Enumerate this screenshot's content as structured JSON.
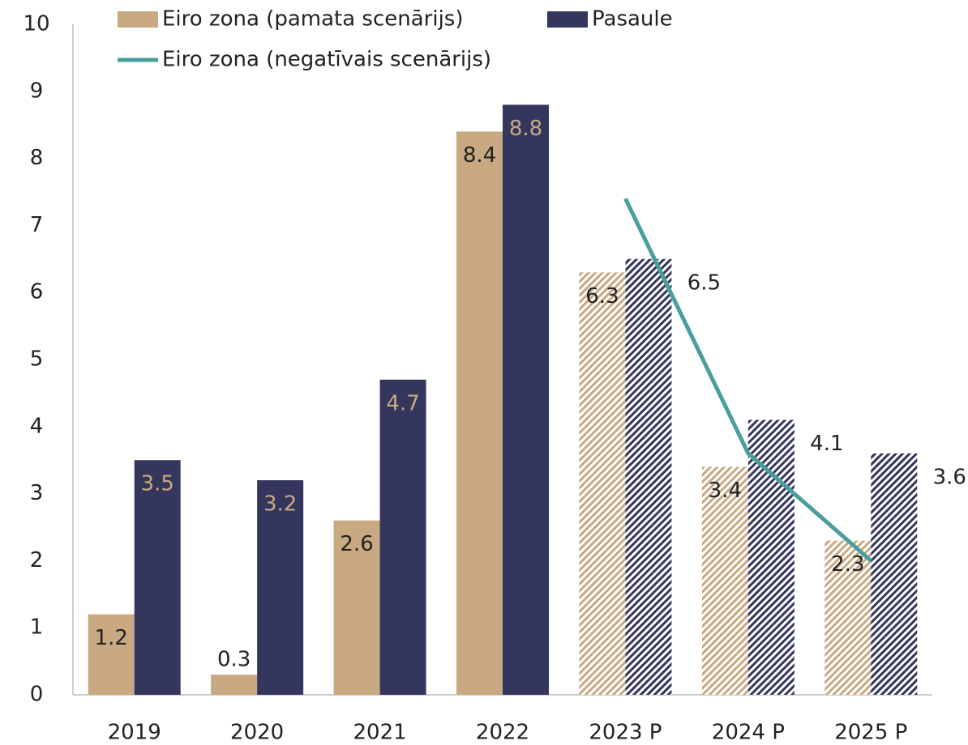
{
  "chart_data": {
    "type": "bar",
    "categories": [
      "2019",
      "2020",
      "2021",
      "2022",
      "2023 P",
      "2024 P",
      "2025 P"
    ],
    "series": [
      {
        "name": "Eiro zona (pamata scenārijs)",
        "color": "#c8a982",
        "values": [
          1.2,
          0.3,
          2.6,
          8.4,
          6.3,
          3.4,
          2.3
        ]
      },
      {
        "name": "Pasaule",
        "color": "#35365e",
        "values": [
          3.5,
          3.2,
          4.7,
          8.8,
          6.5,
          4.1,
          3.6
        ]
      },
      {
        "name": "Eiro zona (negatīvais scenārijs)",
        "type": "line",
        "color": "#4a9e9e",
        "values": [
          null,
          null,
          null,
          null,
          7.4,
          3.6,
          2.0
        ]
      }
    ],
    "patterned": [
      false,
      false,
      false,
      false,
      true,
      true,
      true
    ],
    "ylim": [
      0,
      10
    ],
    "yticks": [
      0,
      1,
      2,
      3,
      4,
      5,
      6,
      7,
      8,
      9,
      10
    ],
    "grid": false
  }
}
